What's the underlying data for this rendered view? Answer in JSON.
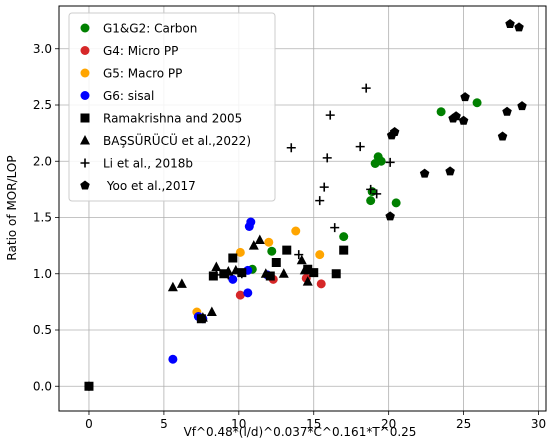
{
  "chart_data": {
    "type": "scatter",
    "xlabel": "Vf^0.48*(l/d)^0.037*C^0.161*T^0.25",
    "ylabel": "Ratio of MOR/LOP",
    "xlim": [
      -2,
      30.5
    ],
    "ylim": [
      -0.22,
      3.38
    ],
    "xticks": [
      0,
      5,
      10,
      15,
      20,
      25,
      30
    ],
    "yticks": [
      0.0,
      0.5,
      1.0,
      1.5,
      2.0,
      2.5,
      3.0
    ],
    "grid": true,
    "legend_position": "upper-left",
    "series": [
      {
        "name": "G1&G2: Carbon",
        "marker": "circle",
        "color": "#008000",
        "points": [
          [
            10.9,
            1.04
          ],
          [
            12.2,
            1.2
          ],
          [
            17.0,
            1.33
          ],
          [
            18.8,
            1.65
          ],
          [
            18.9,
            1.73
          ],
          [
            19.1,
            1.98
          ],
          [
            19.3,
            2.04
          ],
          [
            19.5,
            2.0
          ],
          [
            20.5,
            1.63
          ],
          [
            23.5,
            2.44
          ],
          [
            25.9,
            2.52
          ]
        ]
      },
      {
        "name": "G4: Micro PP",
        "marker": "circle",
        "color": "#d62728",
        "points": [
          [
            10.1,
            0.81
          ],
          [
            12.3,
            0.95
          ],
          [
            14.5,
            0.96
          ],
          [
            15.5,
            0.91
          ]
        ]
      },
      {
        "name": "G5: Macro PP",
        "marker": "circle",
        "color": "#ffa500",
        "points": [
          [
            7.2,
            0.66
          ],
          [
            10.1,
            1.19
          ],
          [
            12.0,
            1.28
          ],
          [
            13.8,
            1.38
          ],
          [
            15.4,
            1.17
          ]
        ]
      },
      {
        "name": "G6: sisal",
        "marker": "circle",
        "color": "#0000ff",
        "points": [
          [
            5.6,
            0.24
          ],
          [
            7.3,
            0.62
          ],
          [
            7.6,
            0.6
          ],
          [
            9.6,
            0.95
          ],
          [
            10.6,
            1.03
          ],
          [
            10.7,
            1.42
          ],
          [
            10.8,
            1.46
          ],
          [
            10.6,
            0.83
          ],
          [
            11.9,
            0.99
          ]
        ]
      },
      {
        "name": "Ramakrishna and 2005",
        "marker": "square",
        "color": "#000000",
        "points": [
          [
            0.0,
            0.0
          ],
          [
            7.5,
            0.6
          ],
          [
            8.3,
            0.98
          ],
          [
            9.0,
            1.0
          ],
          [
            9.6,
            1.14
          ],
          [
            10.2,
            1.01
          ],
          [
            12.1,
            0.98
          ],
          [
            12.5,
            1.1
          ],
          [
            13.2,
            1.21
          ],
          [
            14.6,
            1.04
          ],
          [
            15.0,
            1.01
          ],
          [
            16.5,
            1.0
          ],
          [
            17.0,
            1.21
          ]
        ]
      },
      {
        "name": "BAŞSÜRÜCÜ et al.,2022)",
        "marker": "triangle",
        "color": "#000000",
        "points": [
          [
            5.6,
            0.88
          ],
          [
            6.2,
            0.91
          ],
          [
            7.6,
            0.61
          ],
          [
            8.2,
            0.66
          ],
          [
            8.5,
            1.06
          ],
          [
            9.3,
            1.02
          ],
          [
            9.8,
            1.03
          ],
          [
            11.0,
            1.25
          ],
          [
            11.4,
            1.3
          ],
          [
            11.8,
            1.0
          ],
          [
            13.0,
            1.0
          ],
          [
            14.2,
            1.12
          ],
          [
            14.4,
            1.03
          ],
          [
            14.6,
            0.93
          ]
        ]
      },
      {
        "name": "Li et al., 2018b",
        "marker": "plus",
        "color": "#000000",
        "points": [
          [
            0.0,
            0.0
          ],
          [
            8.5,
            0.99
          ],
          [
            9.3,
            0.99
          ],
          [
            10.2,
            1.0
          ],
          [
            13.5,
            2.12
          ],
          [
            14.0,
            1.17
          ],
          [
            15.4,
            1.65
          ],
          [
            15.7,
            1.77
          ],
          [
            15.9,
            2.03
          ],
          [
            16.1,
            2.41
          ],
          [
            16.4,
            1.41
          ],
          [
            18.1,
            2.13
          ],
          [
            18.5,
            2.65
          ],
          [
            18.8,
            1.75
          ],
          [
            19.2,
            1.71
          ],
          [
            20.1,
            1.99
          ]
        ]
      },
      {
        "name": " Yoo et al.,2017",
        "marker": "pentagon",
        "color": "#000000",
        "points": [
          [
            20.1,
            1.51
          ],
          [
            20.2,
            2.23
          ],
          [
            20.4,
            2.26
          ],
          [
            22.4,
            1.89
          ],
          [
            24.1,
            1.91
          ],
          [
            24.3,
            2.38
          ],
          [
            24.5,
            2.4
          ],
          [
            25.0,
            2.36
          ],
          [
            25.1,
            2.57
          ],
          [
            27.6,
            2.22
          ],
          [
            27.9,
            2.44
          ],
          [
            28.1,
            3.22
          ],
          [
            28.7,
            3.19
          ],
          [
            28.9,
            2.49
          ]
        ]
      }
    ]
  }
}
